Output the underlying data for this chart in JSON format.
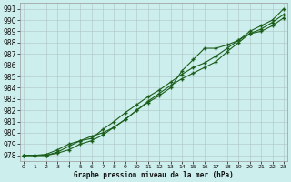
{
  "xlabel": "Graphe pression niveau de la mer (hPa)",
  "bg_color": "#cceeed",
  "grid_color": "#b0c4c4",
  "line_color": "#1a5e1a",
  "x_values": [
    0,
    1,
    2,
    3,
    4,
    5,
    6,
    7,
    8,
    9,
    10,
    11,
    12,
    13,
    14,
    15,
    16,
    17,
    18,
    19,
    20,
    21,
    22,
    23
  ],
  "line1": [
    978.0,
    978.0,
    978.0,
    978.2,
    978.5,
    979.0,
    979.3,
    979.8,
    980.5,
    981.2,
    982.0,
    982.8,
    983.5,
    984.2,
    984.8,
    985.3,
    985.8,
    986.3,
    987.2,
    988.0,
    988.8,
    989.2,
    989.8,
    990.5
  ],
  "line2": [
    978.0,
    978.0,
    978.0,
    978.3,
    978.8,
    979.3,
    979.7,
    980.0,
    980.5,
    981.2,
    982.0,
    982.7,
    983.3,
    984.0,
    985.5,
    986.5,
    987.5,
    987.5,
    987.8,
    988.2,
    988.8,
    989.0,
    989.5,
    990.2
  ],
  "line3": [
    978.0,
    978.0,
    978.1,
    978.5,
    979.0,
    979.3,
    979.5,
    980.3,
    981.0,
    981.8,
    982.5,
    983.2,
    983.8,
    984.5,
    985.2,
    985.8,
    986.2,
    986.8,
    987.5,
    988.2,
    989.0,
    989.5,
    990.0,
    991.0
  ],
  "ylim": [
    977.5,
    991.5
  ],
  "xlim": [
    -0.3,
    23.3
  ],
  "yticks": [
    978,
    979,
    980,
    981,
    982,
    983,
    984,
    985,
    986,
    987,
    988,
    989,
    990,
    991
  ],
  "xticks": [
    0,
    1,
    2,
    3,
    4,
    5,
    6,
    7,
    8,
    9,
    10,
    11,
    12,
    13,
    14,
    15,
    16,
    17,
    18,
    19,
    20,
    21,
    22,
    23
  ],
  "figsize": [
    3.2,
    2.0
  ],
  "dpi": 100
}
